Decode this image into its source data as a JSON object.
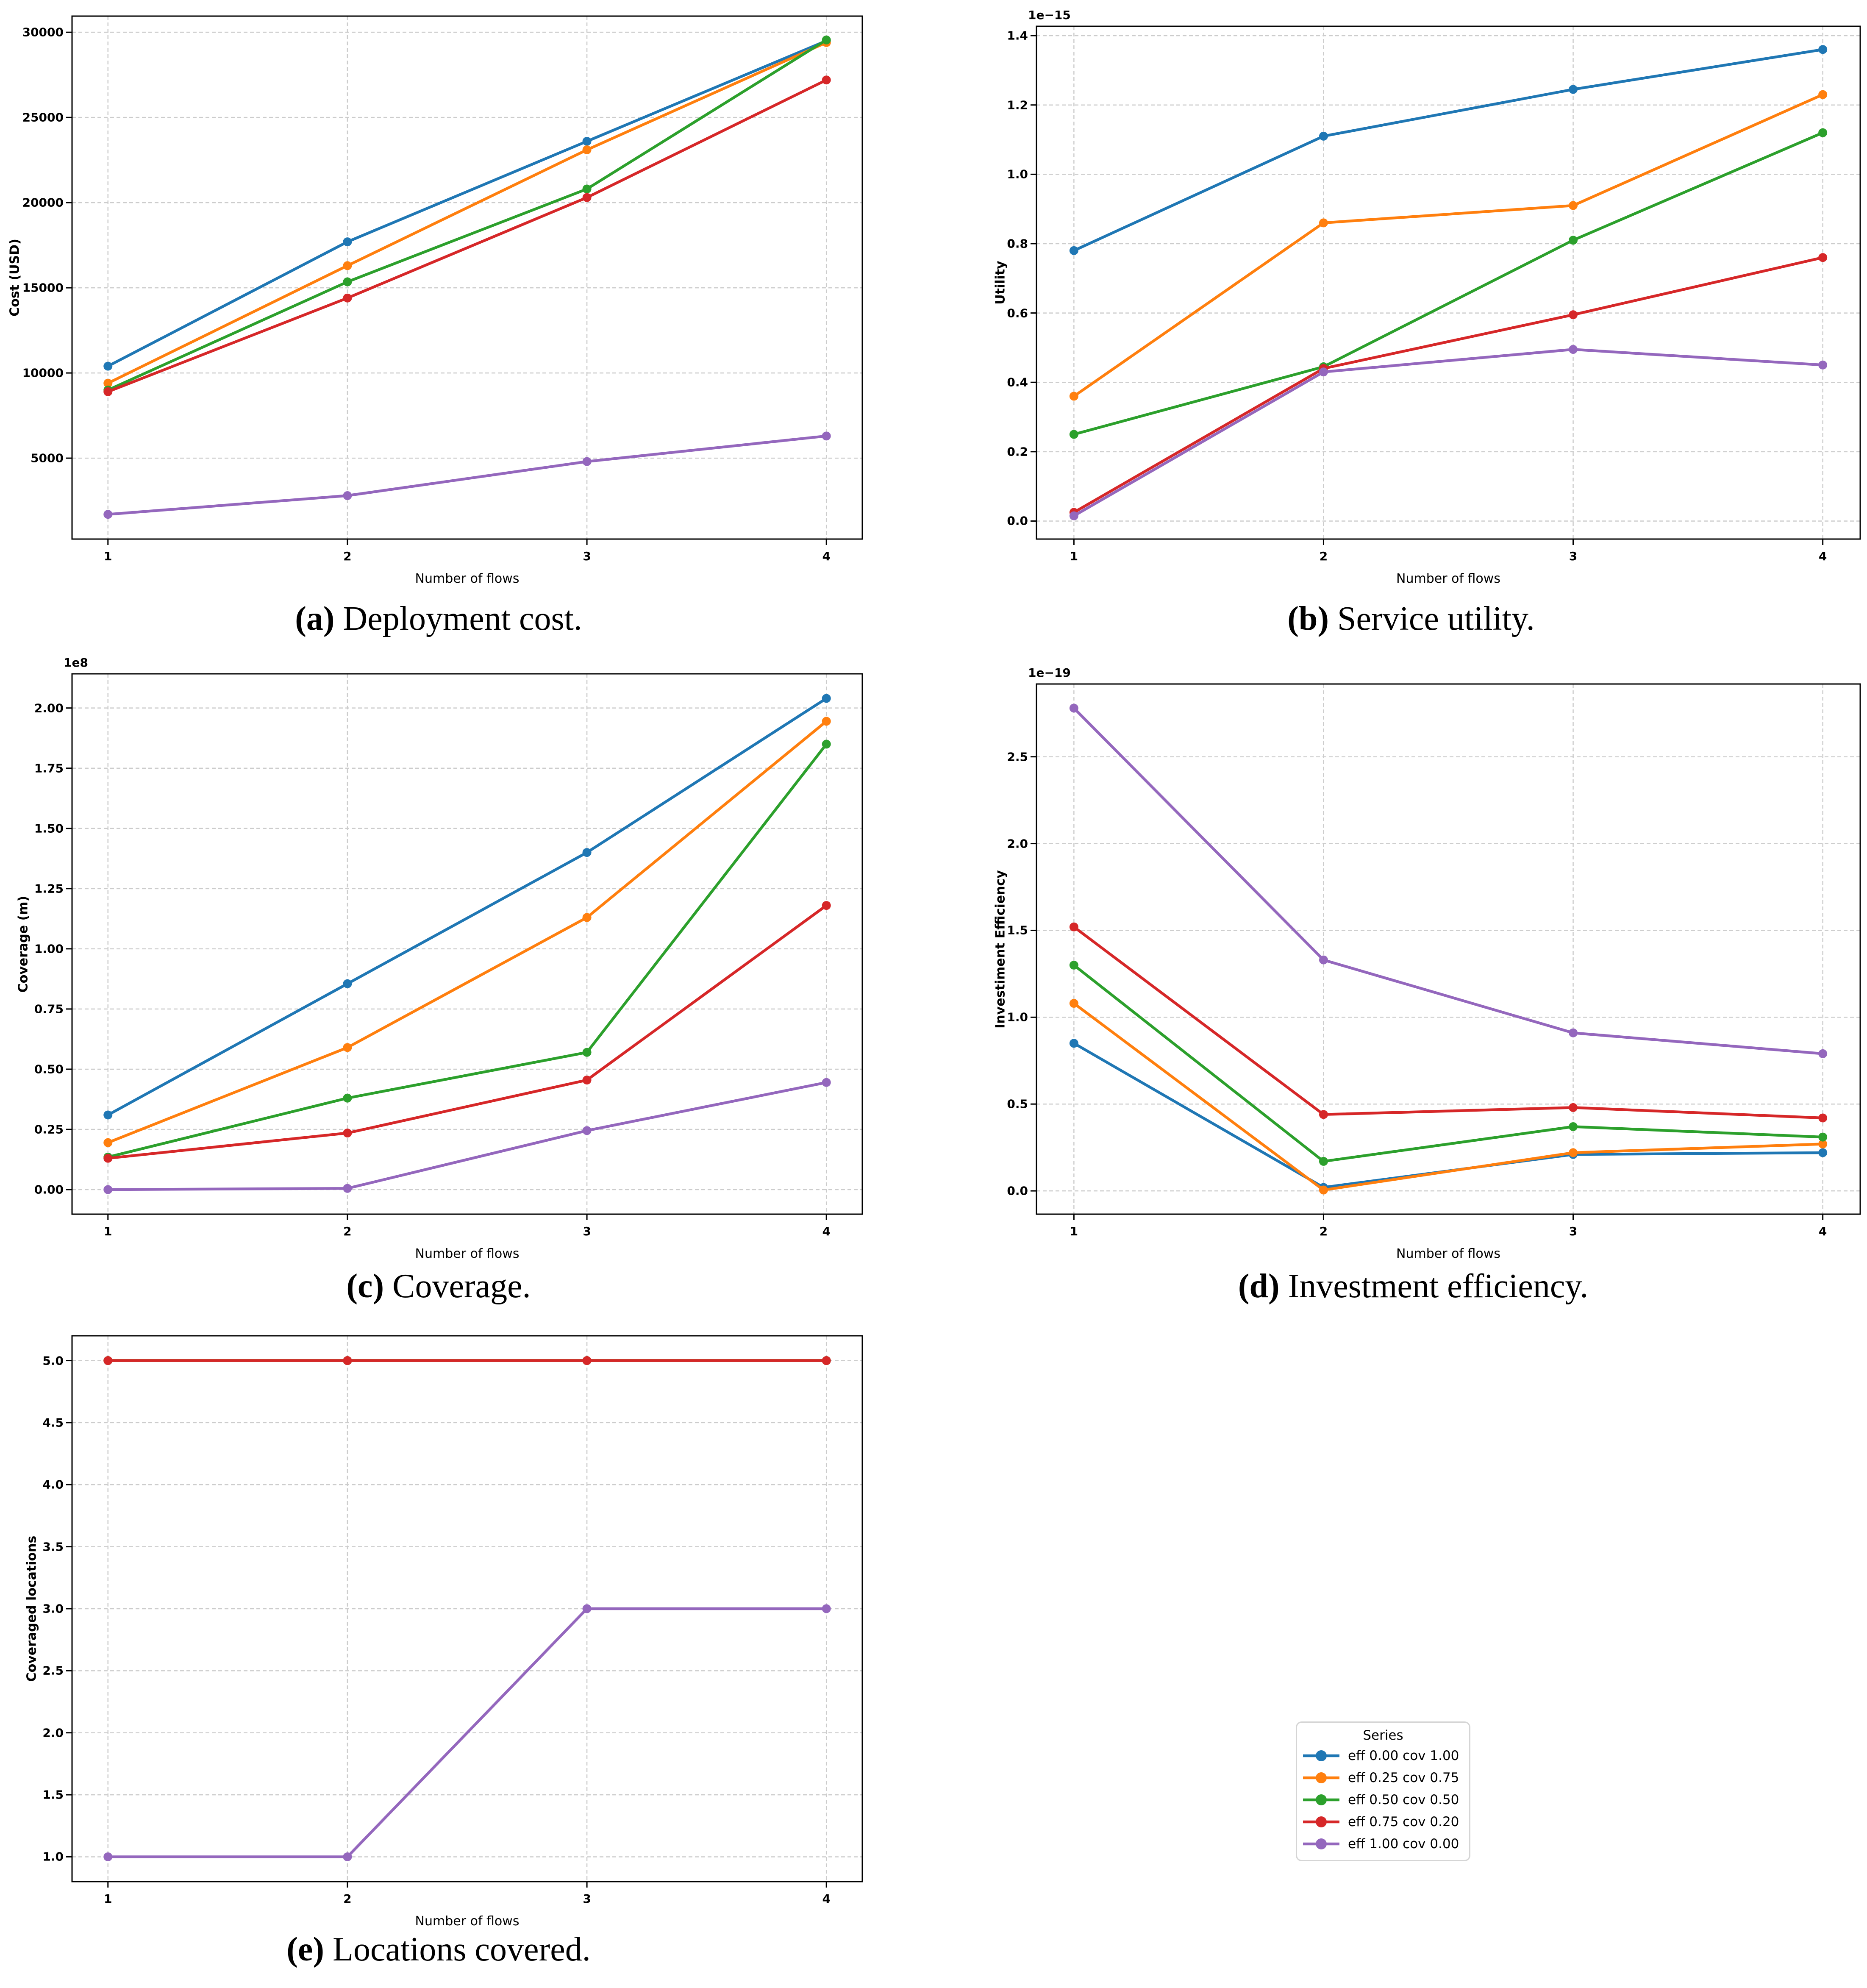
{
  "page": {
    "background": "#ffffff"
  },
  "colors": {
    "blue": "#1f77b4",
    "orange": "#ff7f0e",
    "green": "#2ca02c",
    "red": "#d62728",
    "purple": "#9467bd",
    "grid": "#cccccc",
    "spine": "#000000"
  },
  "legend": {
    "title": "Series",
    "entries": [
      {
        "label": "eff 0.00 cov 1.00",
        "color": "#1f77b4"
      },
      {
        "label": "eff 0.25 cov 0.75",
        "color": "#ff7f0e"
      },
      {
        "label": "eff 0.50 cov 0.50",
        "color": "#2ca02c"
      },
      {
        "label": "eff 0.75 cov 0.20",
        "color": "#d62728"
      },
      {
        "label": "eff 1.00 cov 0.00",
        "color": "#9467bd"
      }
    ]
  },
  "captions": [
    {
      "tag": "(a)",
      "text": " Deployment cost."
    },
    {
      "tag": "(b)",
      "text": " Service utility."
    },
    {
      "tag": "(c)",
      "text": " Coverage."
    },
    {
      "tag": "(d)",
      "text": " Investment efficiency."
    },
    {
      "tag": "(e)",
      "text": " Locations covered."
    }
  ],
  "chart_data": [
    {
      "id": "a",
      "type": "line",
      "title": "",
      "xlabel": "Number of flows",
      "ylabel": "Cost (USD)",
      "offset_label": "",
      "x": [
        1,
        2,
        3,
        4
      ],
      "xtick_labels": [
        "1",
        "2",
        "3",
        "4"
      ],
      "xlim": [
        0.85,
        4.15
      ],
      "ylim": [
        250,
        30950
      ],
      "yticks": [
        5000,
        10000,
        15000,
        20000,
        25000,
        30000
      ],
      "ytick_labels": [
        "5000",
        "10000",
        "15000",
        "20000",
        "25000",
        "30000"
      ],
      "grid": true,
      "series": [
        {
          "name": "eff 0.00 cov 1.00",
          "color": "#1f77b4",
          "values": [
            10400,
            17700,
            23600,
            29500
          ]
        },
        {
          "name": "eff 0.25 cov 0.75",
          "color": "#ff7f0e",
          "values": [
            9400,
            16300,
            23100,
            29400
          ]
        },
        {
          "name": "eff 0.50 cov 0.50",
          "color": "#2ca02c",
          "values": [
            9000,
            15350,
            20800,
            29550
          ]
        },
        {
          "name": "eff 0.75 cov 0.20",
          "color": "#d62728",
          "values": [
            8900,
            14400,
            20300,
            27200
          ]
        },
        {
          "name": "eff 1.00 cov 0.00",
          "color": "#9467bd",
          "values": [
            1700,
            2800,
            4800,
            6300
          ]
        }
      ]
    },
    {
      "id": "b",
      "type": "line",
      "title": "",
      "xlabel": "Number of flows",
      "ylabel": "Utility",
      "offset_label": "1e−15",
      "unit_scale": "1e-15",
      "x": [
        1,
        2,
        3,
        4
      ],
      "xtick_labels": [
        "1",
        "2",
        "3",
        "4"
      ],
      "xlim": [
        0.85,
        4.15
      ],
      "ylim": [
        -0.052,
        1.427
      ],
      "yticks": [
        0.0,
        0.2,
        0.4,
        0.6,
        0.8,
        1.0,
        1.2,
        1.4
      ],
      "ytick_labels": [
        "0.0",
        "0.2",
        "0.4",
        "0.6",
        "0.8",
        "1.0",
        "1.2",
        "1.4"
      ],
      "grid": true,
      "series": [
        {
          "name": "eff 0.00 cov 1.00",
          "color": "#1f77b4",
          "values": [
            0.78,
            1.11,
            1.245,
            1.36
          ]
        },
        {
          "name": "eff 0.25 cov 0.75",
          "color": "#ff7f0e",
          "values": [
            0.36,
            0.86,
            0.91,
            1.23
          ]
        },
        {
          "name": "eff 0.50 cov 0.50",
          "color": "#2ca02c",
          "values": [
            0.25,
            0.445,
            0.81,
            1.12
          ]
        },
        {
          "name": "eff 0.75 cov 0.20",
          "color": "#d62728",
          "values": [
            0.025,
            0.44,
            0.595,
            0.76
          ]
        },
        {
          "name": "eff 1.00 cov 0.00",
          "color": "#9467bd",
          "values": [
            0.015,
            0.43,
            0.495,
            0.45
          ]
        }
      ]
    },
    {
      "id": "c",
      "type": "line",
      "title": "",
      "xlabel": "Number of flows",
      "ylabel": "Coverage (m)",
      "offset_label": "1e8",
      "unit_scale": "1e8",
      "x": [
        1,
        2,
        3,
        4
      ],
      "xtick_labels": [
        "1",
        "2",
        "3",
        "4"
      ],
      "xlim": [
        0.85,
        4.15
      ],
      "ylim": [
        -0.102,
        2.142
      ],
      "yticks": [
        0.0,
        0.25,
        0.5,
        0.75,
        1.0,
        1.25,
        1.5,
        1.75,
        2.0
      ],
      "ytick_labels": [
        "0.00",
        "0.25",
        "0.50",
        "0.75",
        "1.00",
        "1.25",
        "1.50",
        "1.75",
        "2.00"
      ],
      "grid": true,
      "series": [
        {
          "name": "eff 0.00 cov 1.00",
          "color": "#1f77b4",
          "values": [
            0.31,
            0.855,
            1.4,
            2.04
          ]
        },
        {
          "name": "eff 0.25 cov 0.75",
          "color": "#ff7f0e",
          "values": [
            0.195,
            0.59,
            1.13,
            1.945
          ]
        },
        {
          "name": "eff 0.50 cov 0.50",
          "color": "#2ca02c",
          "values": [
            0.135,
            0.38,
            0.57,
            1.85
          ]
        },
        {
          "name": "eff 0.75 cov 0.20",
          "color": "#d62728",
          "values": [
            0.13,
            0.235,
            0.455,
            1.18
          ]
        },
        {
          "name": "eff 1.00 cov 0.00",
          "color": "#9467bd",
          "values": [
            0.0,
            0.005,
            0.245,
            0.445
          ]
        }
      ]
    },
    {
      "id": "d",
      "type": "line",
      "title": "",
      "xlabel": "Number of flows",
      "ylabel": "Investiment Efficiency",
      "offset_label": "1e−19",
      "unit_scale": "1e-19",
      "x": [
        1,
        2,
        3,
        4
      ],
      "xtick_labels": [
        "1",
        "2",
        "3",
        "4"
      ],
      "xlim": [
        0.85,
        4.15
      ],
      "ylim": [
        -0.134,
        2.919
      ],
      "yticks": [
        0.0,
        0.5,
        1.0,
        1.5,
        2.0,
        2.5
      ],
      "ytick_labels": [
        "0.0",
        "0.5",
        "1.0",
        "1.5",
        "2.0",
        "2.5"
      ],
      "grid": true,
      "series": [
        {
          "name": "eff 0.00 cov 1.00",
          "color": "#1f77b4",
          "values": [
            0.85,
            0.02,
            0.21,
            0.22
          ]
        },
        {
          "name": "eff 0.25 cov 0.75",
          "color": "#ff7f0e",
          "values": [
            1.08,
            0.005,
            0.22,
            0.27
          ]
        },
        {
          "name": "eff 0.50 cov 0.50",
          "color": "#2ca02c",
          "values": [
            1.3,
            0.17,
            0.37,
            0.31
          ]
        },
        {
          "name": "eff 0.75 cov 0.20",
          "color": "#d62728",
          "values": [
            1.52,
            0.44,
            0.48,
            0.42
          ]
        },
        {
          "name": "eff 1.00 cov 0.00",
          "color": "#9467bd",
          "values": [
            2.78,
            1.33,
            0.91,
            0.79
          ]
        }
      ]
    },
    {
      "id": "e",
      "type": "line",
      "title": "",
      "xlabel": "Number of flows",
      "ylabel": "Coveraged locations",
      "offset_label": "",
      "x": [
        1,
        2,
        3,
        4
      ],
      "xtick_labels": [
        "1",
        "2",
        "3",
        "4"
      ],
      "xlim": [
        0.85,
        4.15
      ],
      "ylim": [
        0.8,
        5.2
      ],
      "yticks": [
        1.0,
        1.5,
        2.0,
        2.5,
        3.0,
        3.5,
        4.0,
        4.5,
        5.0
      ],
      "ytick_labels": [
        "1.0",
        "1.5",
        "2.0",
        "2.5",
        "3.0",
        "3.5",
        "4.0",
        "4.5",
        "5.0"
      ],
      "grid": true,
      "series": [
        {
          "name": "eff 0.00 cov 1.00",
          "color": "#1f77b4",
          "values": [
            5,
            5,
            5,
            5
          ]
        },
        {
          "name": "eff 0.25 cov 0.75",
          "color": "#ff7f0e",
          "values": [
            5,
            5,
            5,
            5
          ]
        },
        {
          "name": "eff 0.50 cov 0.50",
          "color": "#2ca02c",
          "values": [
            5,
            5,
            5,
            5
          ]
        },
        {
          "name": "eff 0.75 cov 0.20",
          "color": "#d62728",
          "values": [
            5,
            5,
            5,
            5
          ]
        },
        {
          "name": "eff 1.00 cov 0.00",
          "color": "#9467bd",
          "values": [
            1,
            1,
            3,
            3
          ]
        }
      ]
    }
  ]
}
